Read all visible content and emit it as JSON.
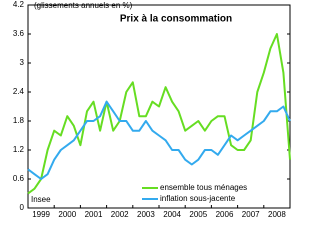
{
  "chart_data": {
    "type": "line",
    "title": "Prix à la consommation",
    "subtitle": "(glissements annuels en %)",
    "source": "Insee",
    "x": [
      1999,
      1999.25,
      1999.5,
      1999.75,
      2000,
      2000.25,
      2000.5,
      2000.75,
      2001,
      2001.25,
      2001.5,
      2001.75,
      2002,
      2002.25,
      2002.5,
      2002.75,
      2003,
      2003.25,
      2003.5,
      2003.75,
      2004,
      2004.25,
      2004.5,
      2004.75,
      2005,
      2005.25,
      2005.5,
      2005.75,
      2006,
      2006.25,
      2006.5,
      2006.75,
      2007,
      2007.25,
      2007.5,
      2007.75,
      2008,
      2008.25,
      2008.5,
      2008.75,
      2009
    ],
    "series": [
      {
        "name": "ensemble tous ménages",
        "color": "#66dd22",
        "values": [
          0.3,
          0.4,
          0.6,
          1.2,
          1.6,
          1.5,
          1.9,
          1.7,
          1.3,
          2.0,
          2.2,
          1.6,
          2.2,
          1.6,
          1.8,
          2.4,
          2.6,
          1.9,
          1.9,
          2.2,
          2.1,
          2.5,
          2.2,
          2.0,
          1.6,
          1.7,
          1.8,
          1.6,
          1.8,
          1.9,
          1.9,
          1.3,
          1.2,
          1.2,
          1.4,
          2.4,
          2.8,
          3.3,
          3.6,
          2.8,
          1.0
        ]
      },
      {
        "name": "inflation sous-jacente",
        "color": "#33aaee",
        "values": [
          0.8,
          0.7,
          0.6,
          0.7,
          1.0,
          1.2,
          1.3,
          1.4,
          1.6,
          1.8,
          1.8,
          1.9,
          2.2,
          2.0,
          1.8,
          1.8,
          1.6,
          1.6,
          1.8,
          1.6,
          1.5,
          1.4,
          1.2,
          1.2,
          1.0,
          0.9,
          1.0,
          1.2,
          1.2,
          1.1,
          1.3,
          1.5,
          1.4,
          1.5,
          1.6,
          1.7,
          1.8,
          2.0,
          2.0,
          2.1,
          1.8
        ]
      }
    ],
    "xlim": [
      1999,
      2009
    ],
    "xticks": [
      1999,
      2000,
      2001,
      2002,
      2003,
      2004,
      2005,
      2006,
      2007,
      2008
    ],
    "ylim": [
      0,
      4.2
    ],
    "yticks": [
      0,
      0.6,
      1.2,
      1.8,
      2.4,
      3,
      3.6,
      4.2
    ]
  }
}
